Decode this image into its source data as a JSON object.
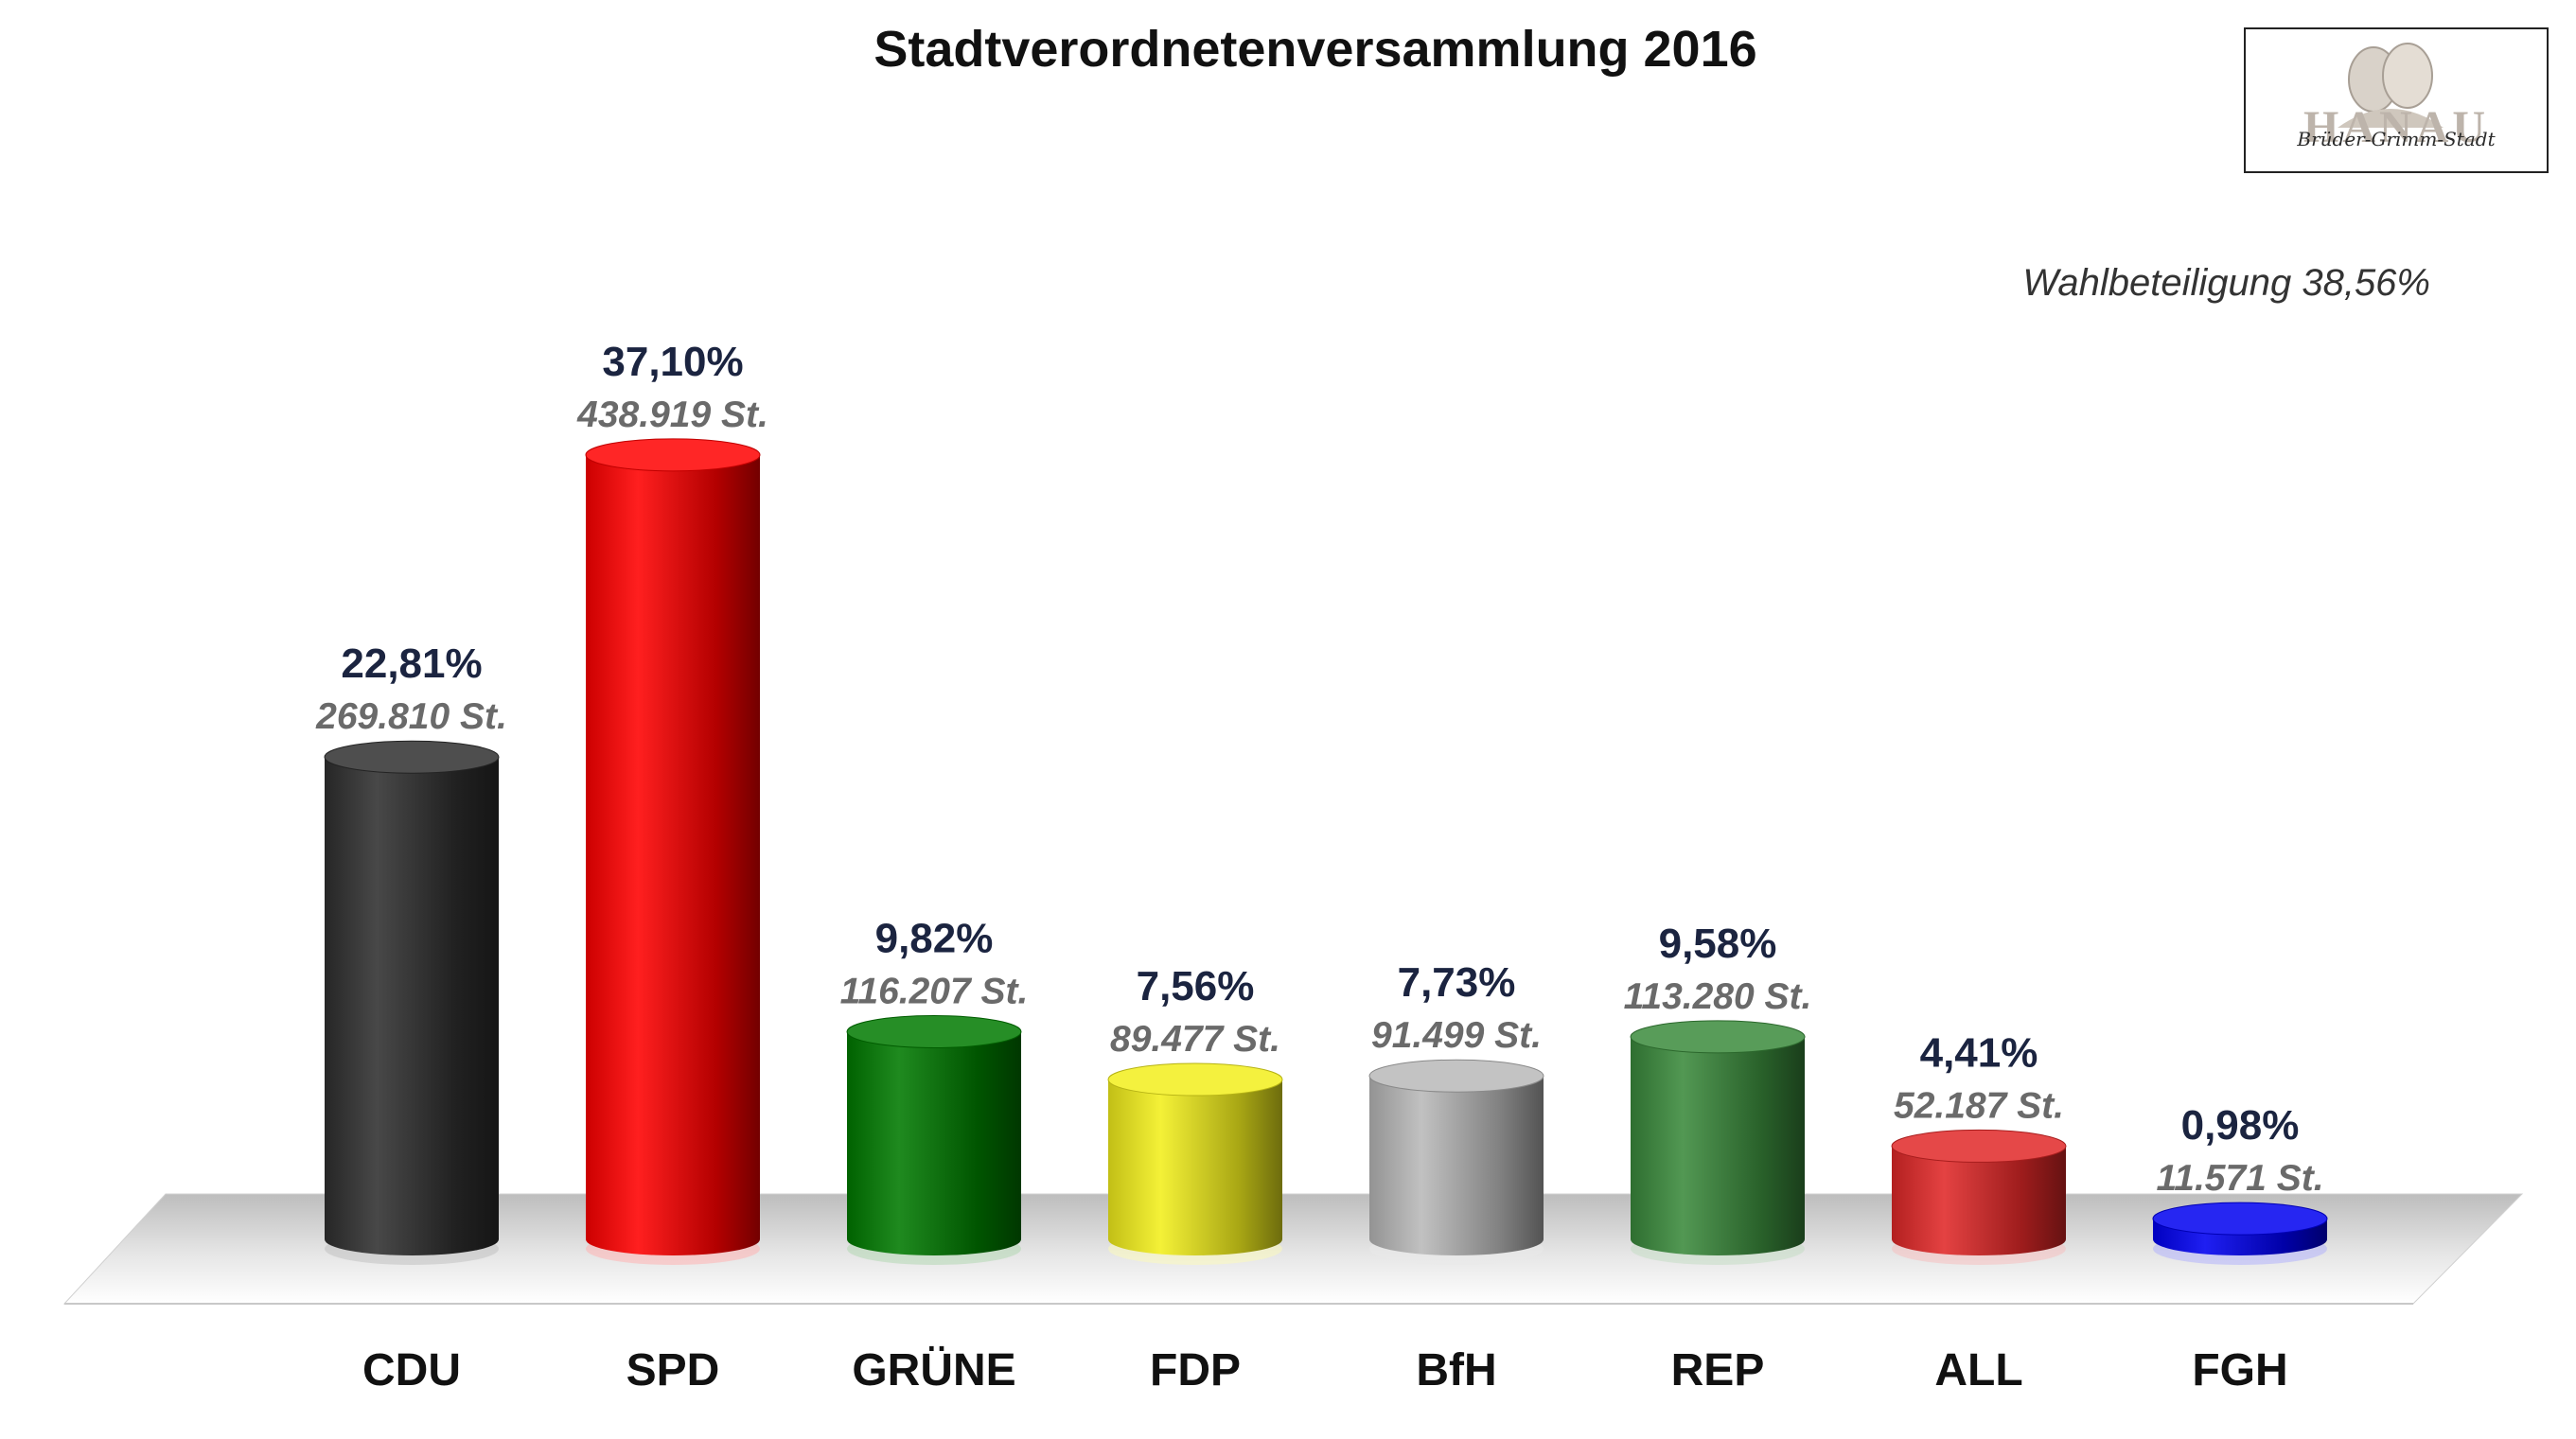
{
  "chart_data": {
    "type": "bar",
    "title": "Stadtverordnetenversammlung 2016",
    "subtitle": "Wahlbeteiligung 38,56%",
    "categories": [
      "CDU",
      "SPD",
      "GRÜNE",
      "FDP",
      "BfH",
      "REP",
      "ALL",
      "FGH"
    ],
    "values": [
      22.81,
      37.1,
      9.82,
      7.56,
      7.73,
      9.58,
      4.41,
      0.98
    ],
    "value_labels": [
      "22,81%",
      "37,10%",
      "9,82%",
      "7,56%",
      "7,73%",
      "9,58%",
      "4,41%",
      "0,98%"
    ],
    "votes": [
      269810,
      438919,
      116207,
      89477,
      91499,
      113280,
      52187,
      11571
    ],
    "vote_labels": [
      "269.810 St.",
      "438.919 St.",
      "116.207 St.",
      "89.477 St.",
      "91.499 St.",
      "113.280 St.",
      "52.187 St.",
      "11.571 St."
    ],
    "colors": [
      "#2f2f2f",
      "#ff0000",
      "#007a00",
      "#f2ef1c",
      "#b8b8b8",
      "#3a8a3c",
      "#e02828",
      "#0000f0"
    ],
    "ylim": [
      0,
      40
    ],
    "grid": false,
    "legend": "none"
  },
  "logo": {
    "script_text": "Brüder-Grimm-Stadt",
    "word": "HANAU"
  }
}
